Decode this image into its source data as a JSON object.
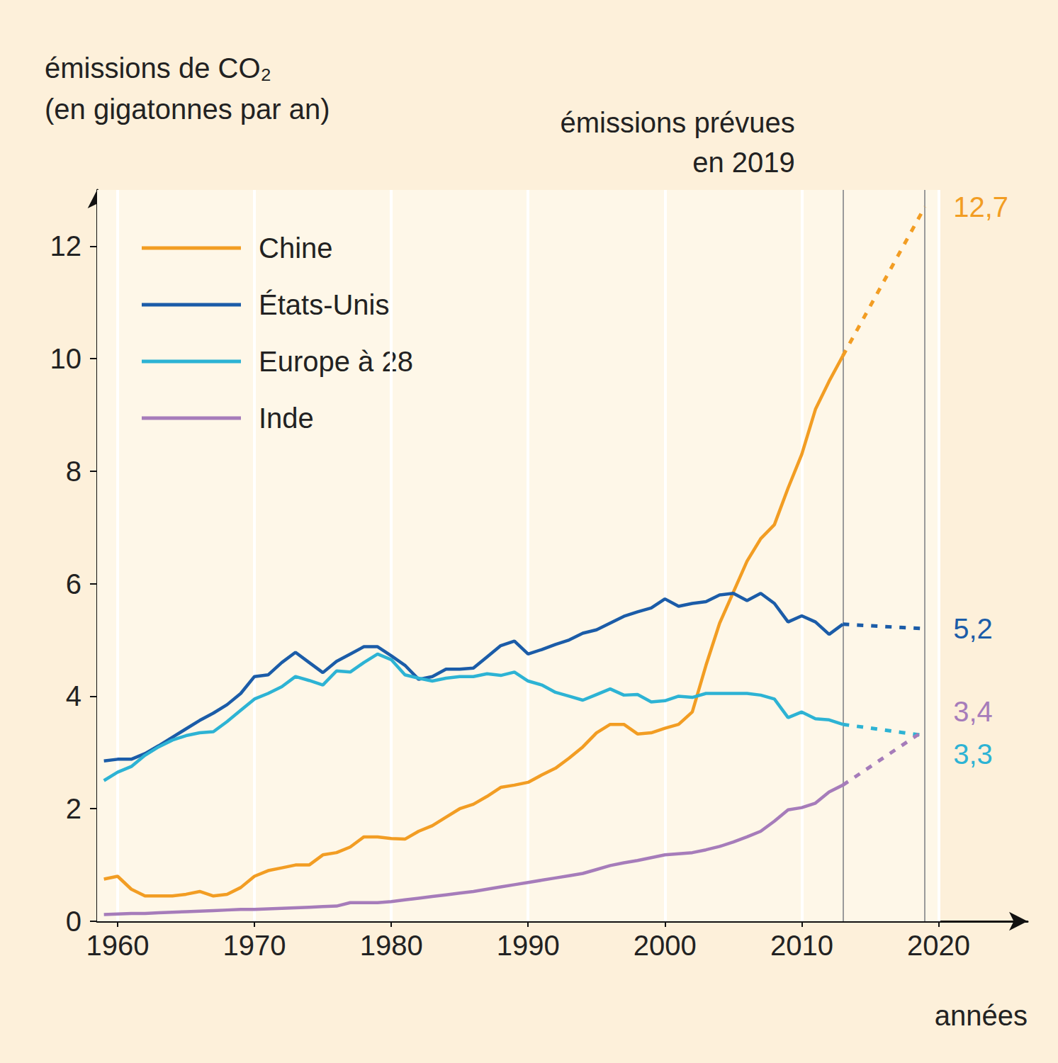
{
  "chart_data": {
    "type": "line",
    "y_label": "émissions de CO₂\n(en gigatonnes par an)",
    "x_label": "années",
    "x": [
      1959,
      1960,
      1961,
      1962,
      1963,
      1964,
      1965,
      1966,
      1967,
      1968,
      1969,
      1970,
      1971,
      1972,
      1973,
      1974,
      1975,
      1976,
      1977,
      1978,
      1979,
      1980,
      1981,
      1982,
      1983,
      1984,
      1985,
      1986,
      1987,
      1988,
      1989,
      1990,
      1991,
      1992,
      1993,
      1994,
      1995,
      1996,
      1997,
      1998,
      1999,
      2000,
      2001,
      2002,
      2003,
      2004,
      2005,
      2006,
      2007,
      2008,
      2009,
      2010,
      2011,
      2012,
      2013,
      2019
    ],
    "series": [
      {
        "name": "Chine",
        "color": "#f29d23",
        "end_label": "12,7",
        "values": [
          0.75,
          0.8,
          0.57,
          0.45,
          0.45,
          0.45,
          0.48,
          0.53,
          0.45,
          0.48,
          0.6,
          0.8,
          0.9,
          0.95,
          1.0,
          1.0,
          1.18,
          1.22,
          1.32,
          1.5,
          1.5,
          1.47,
          1.46,
          1.6,
          1.7,
          1.85,
          2.0,
          2.08,
          2.22,
          2.38,
          2.42,
          2.47,
          2.6,
          2.72,
          2.9,
          3.1,
          3.35,
          3.5,
          3.5,
          3.33,
          3.35,
          3.43,
          3.5,
          3.72,
          4.55,
          5.3,
          5.85,
          6.4,
          6.8,
          7.05,
          7.7,
          8.3,
          9.1,
          9.6,
          10.05,
          12.7
        ]
      },
      {
        "name": "États-Unis",
        "color": "#1b5ca8",
        "end_label": "5,2",
        "values": [
          2.85,
          2.88,
          2.88,
          2.98,
          3.12,
          3.27,
          3.42,
          3.57,
          3.7,
          3.85,
          4.05,
          4.35,
          4.38,
          4.6,
          4.78,
          4.6,
          4.42,
          4.62,
          4.75,
          4.88,
          4.88,
          4.72,
          4.55,
          4.3,
          4.35,
          4.48,
          4.48,
          4.5,
          4.7,
          4.9,
          4.98,
          4.75,
          4.83,
          4.92,
          5.0,
          5.12,
          5.18,
          5.3,
          5.42,
          5.5,
          5.57,
          5.73,
          5.6,
          5.65,
          5.68,
          5.8,
          5.83,
          5.7,
          5.83,
          5.65,
          5.32,
          5.43,
          5.32,
          5.1,
          5.28,
          5.2
        ]
      },
      {
        "name": "Europe à 28",
        "color": "#2db3d4",
        "end_label": "3,3",
        "values": [
          2.5,
          2.65,
          2.75,
          2.95,
          3.1,
          3.22,
          3.3,
          3.35,
          3.37,
          3.55,
          3.75,
          3.95,
          4.05,
          4.17,
          4.35,
          4.28,
          4.2,
          4.45,
          4.43,
          4.6,
          4.75,
          4.65,
          4.38,
          4.32,
          4.27,
          4.32,
          4.35,
          4.35,
          4.4,
          4.37,
          4.43,
          4.27,
          4.2,
          4.07,
          4.0,
          3.93,
          4.03,
          4.13,
          4.02,
          4.03,
          3.9,
          3.92,
          4.0,
          3.98,
          4.05,
          4.05,
          4.05,
          4.05,
          4.02,
          3.95,
          3.62,
          3.72,
          3.6,
          3.58,
          3.5,
          3.3
        ]
      },
      {
        "name": "Inde",
        "color": "#a67cba",
        "end_label": "3,4",
        "values": [
          0.12,
          0.13,
          0.14,
          0.14,
          0.15,
          0.16,
          0.17,
          0.18,
          0.19,
          0.2,
          0.21,
          0.21,
          0.22,
          0.23,
          0.24,
          0.25,
          0.26,
          0.27,
          0.33,
          0.33,
          0.33,
          0.35,
          0.38,
          0.41,
          0.44,
          0.47,
          0.5,
          0.53,
          0.57,
          0.61,
          0.65,
          0.69,
          0.73,
          0.77,
          0.81,
          0.85,
          0.92,
          0.99,
          1.04,
          1.08,
          1.13,
          1.18,
          1.2,
          1.22,
          1.27,
          1.33,
          1.41,
          1.5,
          1.6,
          1.78,
          1.98,
          2.02,
          2.1,
          2.3,
          2.42,
          3.4
        ]
      }
    ],
    "forecast": {
      "label": "émissions prévues\nen 2019",
      "x": [
        2013,
        2019
      ]
    },
    "xlim": [
      1958.5,
      2026.5
    ],
    "xticks": [
      1960,
      1970,
      1980,
      1990,
      2000,
      2010,
      2020
    ],
    "ylim": [
      0,
      13
    ],
    "yticks": [
      0,
      2,
      4,
      6,
      8,
      10,
      12
    ],
    "grid": true,
    "legend": "top-left"
  }
}
